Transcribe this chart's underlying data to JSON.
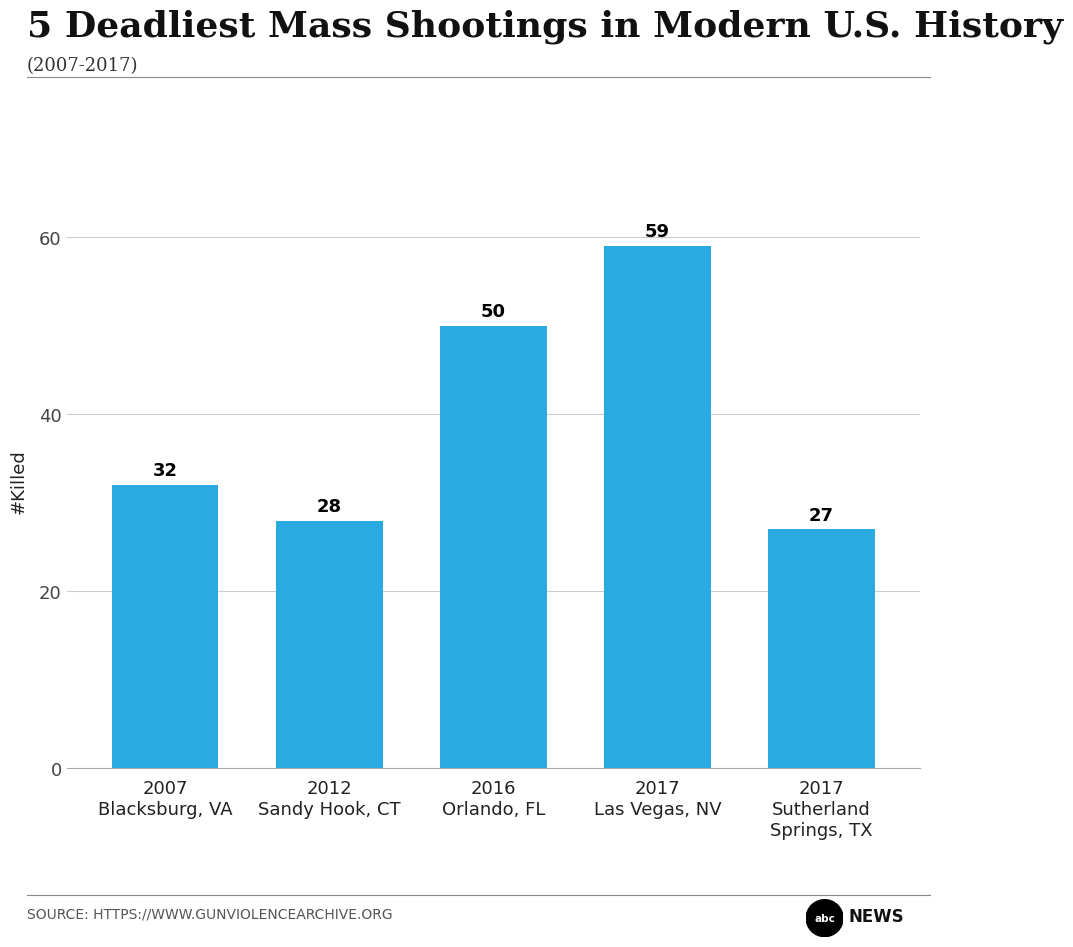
{
  "title": "5 Deadliest Mass Shootings in Modern U.S. History",
  "subtitle": "(2007-2017)",
  "ylabel": "#Killed",
  "categories": [
    "2007\nBlacksburg, VA",
    "2012\nSandy Hook, CT",
    "2016\nOrlando, FL",
    "2017\nLas Vegas, NV",
    "2017\nSutherland\nSprings, TX"
  ],
  "values": [
    32,
    28,
    50,
    59,
    27
  ],
  "bar_color": "#29ABE2",
  "ylim": [
    0,
    65
  ],
  "yticks": [
    0,
    20,
    40,
    60
  ],
  "background_color": "#FFFFFF",
  "source_text": "SOURCE: HTTPS://WWW.GUNVIOLENCEARCHIVE.ORG",
  "title_fontsize": 26,
  "subtitle_fontsize": 13,
  "axis_label_fontsize": 13,
  "tick_fontsize": 13,
  "value_label_fontsize": 13,
  "source_fontsize": 10
}
